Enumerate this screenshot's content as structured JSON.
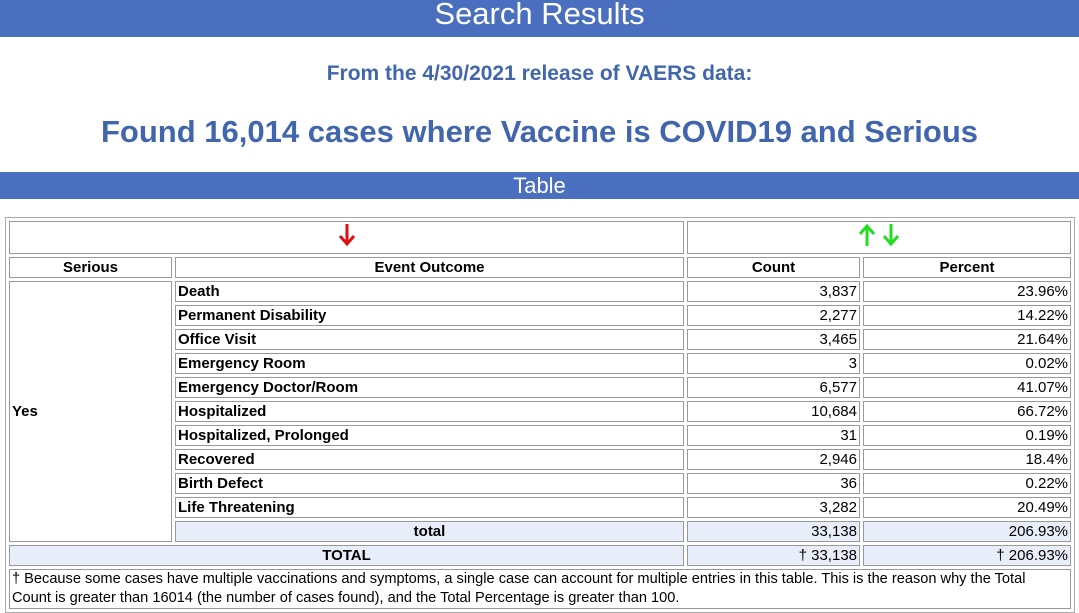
{
  "header": {
    "title": "Search Results",
    "subtitle": "From the 4/30/2021 release of VAERS data:",
    "heading": "Found 16,014 cases where Vaccine is COVID19 and Serious"
  },
  "section": {
    "title": "Table"
  },
  "table": {
    "columns": [
      "Serious",
      "Event Outcome",
      "Count",
      "Percent"
    ],
    "group": "Yes",
    "rows": [
      [
        "Death",
        "3,837",
        "23.96%"
      ],
      [
        "Permanent Disability",
        "2,277",
        "14.22%"
      ],
      [
        "Office Visit",
        "3,465",
        "21.64%"
      ],
      [
        "Emergency Room",
        "3",
        "0.02%"
      ],
      [
        "Emergency Doctor/Room",
        "6,577",
        "41.07%"
      ],
      [
        "Hospitalized",
        "10,684",
        "66.72%"
      ],
      [
        "Hospitalized, Prolonged",
        "31",
        "0.19%"
      ],
      [
        "Recovered",
        "2,946",
        "18.4%"
      ],
      [
        "Birth Defect",
        "36",
        "0.22%"
      ],
      [
        "Life Threatening",
        "3,282",
        "20.49%"
      ]
    ],
    "subtotal": [
      "total",
      "33,138",
      "206.93%"
    ],
    "total": [
      "TOTAL",
      "† 33,138",
      "† 206.93%"
    ],
    "footnote": "† Because some cases have multiple vaccinations and symptoms, a single case can account for multiple entries in this table. This is the reason why the Total Count is greater than 16014 (the number of cases found), and the Total Percentage is greater than 100."
  }
}
